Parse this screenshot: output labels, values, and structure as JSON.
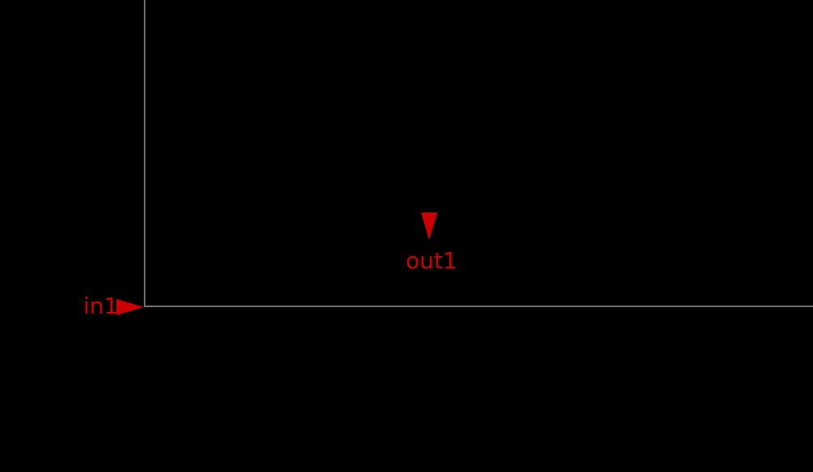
{
  "diagram": {
    "background_color": "#000000",
    "wire_color": "#6e6e6e",
    "pin_color": "#cc0000",
    "pins": {
      "input": {
        "label": "in1",
        "direction": "right",
        "icon": "arrow-right-icon"
      },
      "output": {
        "label": "out1",
        "direction": "down",
        "icon": "arrow-down-icon"
      }
    }
  }
}
